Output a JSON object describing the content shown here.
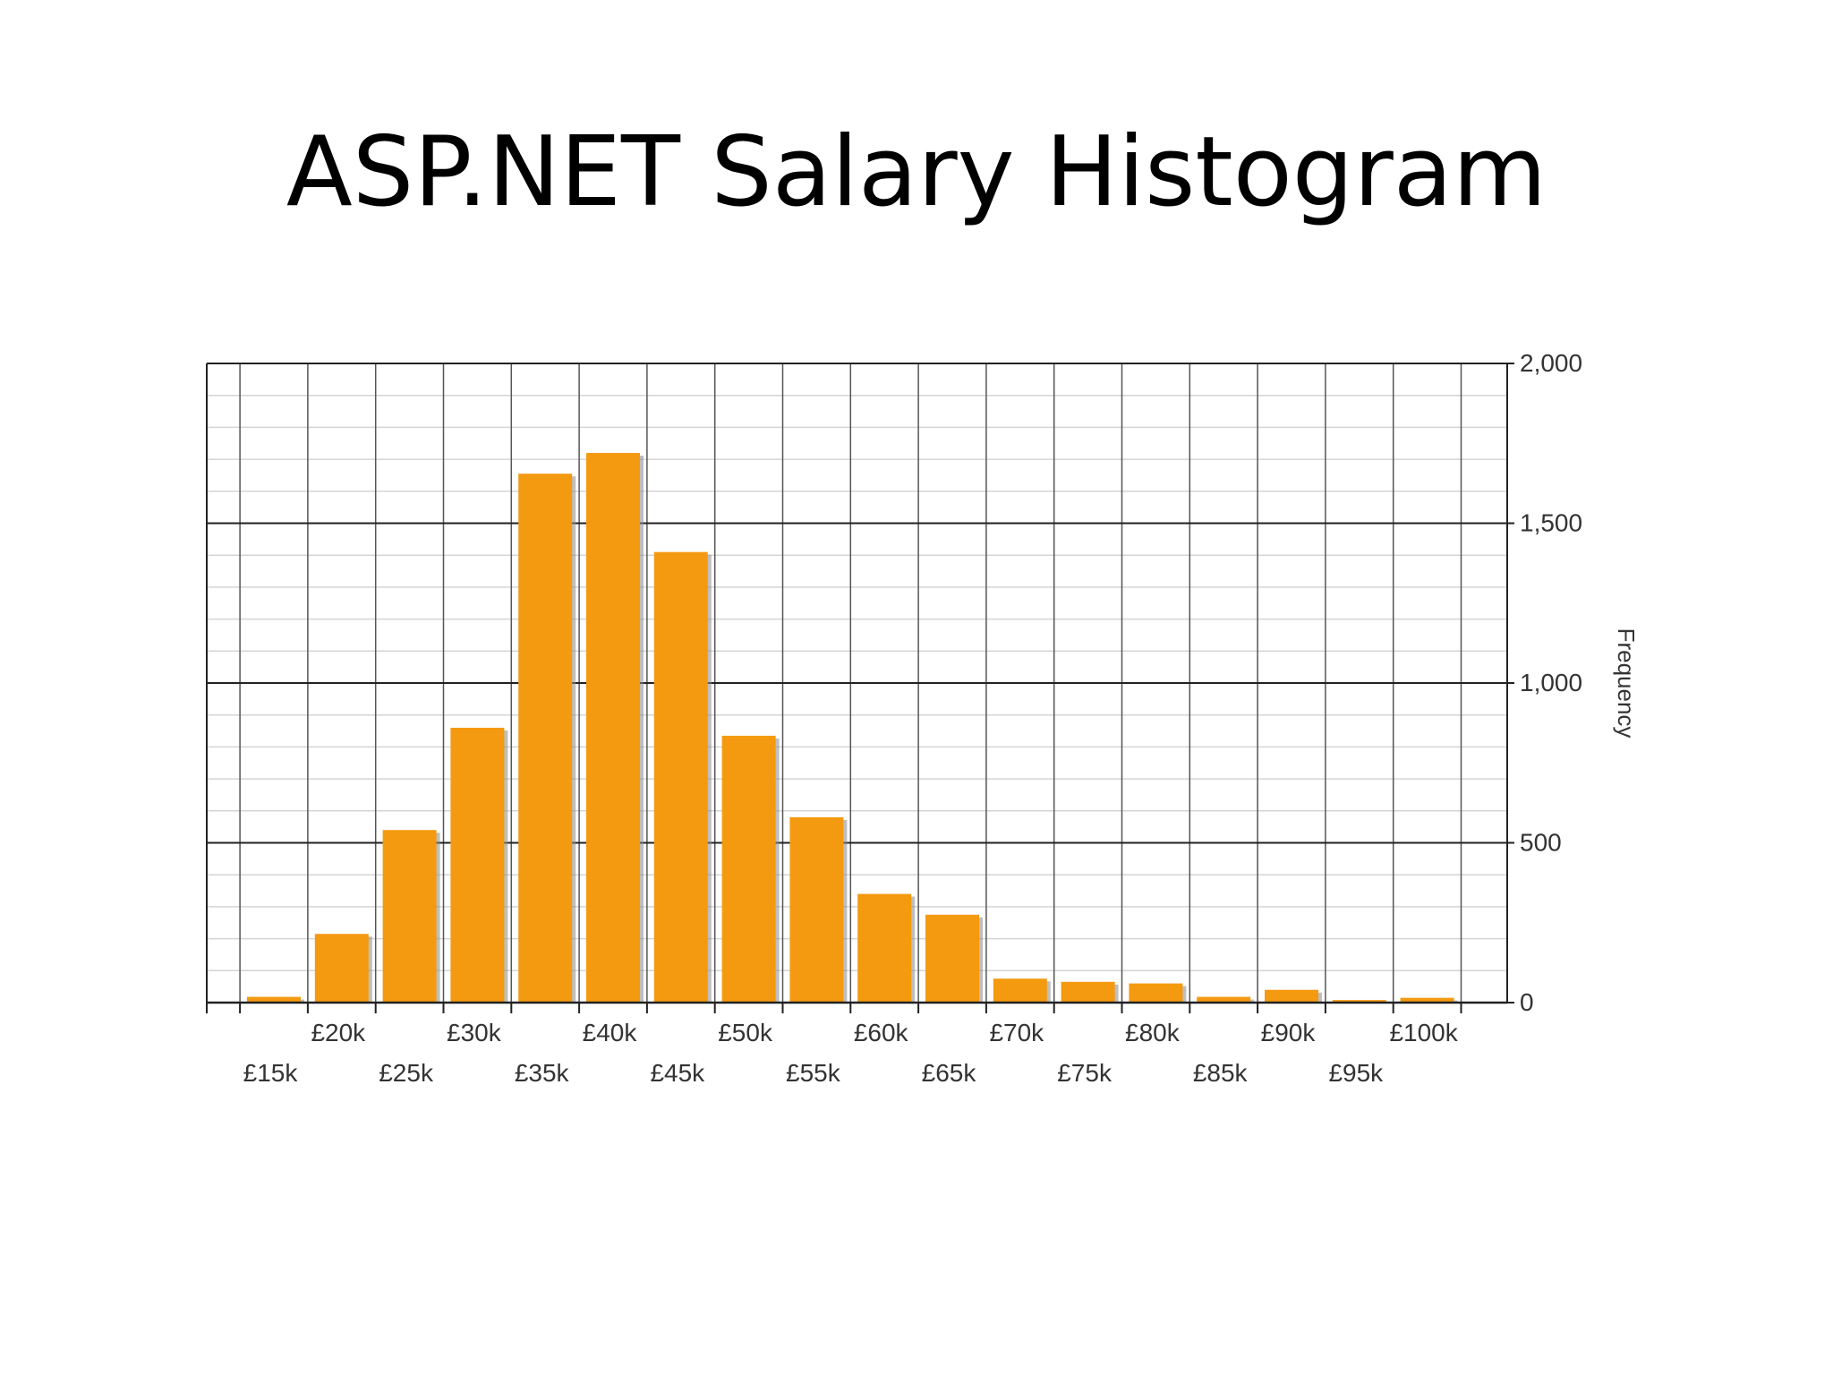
{
  "slide": {
    "title": "ASP.NET Salary Histogram"
  },
  "chart_data": {
    "type": "bar",
    "title": "",
    "xlabel": "",
    "ylabel": "Frequency",
    "ylim": [
      0,
      2000
    ],
    "y_ticks": [
      0,
      500,
      1000,
      1500,
      2000
    ],
    "y_tick_labels": [
      "0",
      "500",
      "1,000",
      "1,500",
      "2,000"
    ],
    "y_axis_side": "right",
    "grid": true,
    "x_tick_labels": [
      "£15k",
      "£20k",
      "£25k",
      "£30k",
      "£35k",
      "£40k",
      "£45k",
      "£50k",
      "£55k",
      "£60k",
      "£65k",
      "£70k",
      "£75k",
      "£80k",
      "£85k",
      "£90k",
      "£95k",
      "£100k"
    ],
    "bins": [
      "£12.5k–£17.5k",
      "£17.5k–£22.5k",
      "£22.5k–£27.5k",
      "£27.5k–£32.5k",
      "£32.5k–£37.5k",
      "£37.5k–£42.5k",
      "£42.5k–£47.5k",
      "£47.5k–£52.5k",
      "£52.5k–£57.5k",
      "£57.5k–£62.5k",
      "£62.5k–£67.5k",
      "£67.5k–£72.5k",
      "£72.5k–£77.5k",
      "£77.5k–£82.5k",
      "£82.5k–£87.5k",
      "£87.5k–£92.5k",
      "£92.5k–£97.5k",
      "£97.5k–£102.5k"
    ],
    "values": [
      18,
      215,
      540,
      860,
      1655,
      1720,
      1410,
      835,
      580,
      340,
      275,
      75,
      65,
      60,
      18,
      40,
      8,
      15
    ],
    "bar_color": "#f49a10"
  }
}
